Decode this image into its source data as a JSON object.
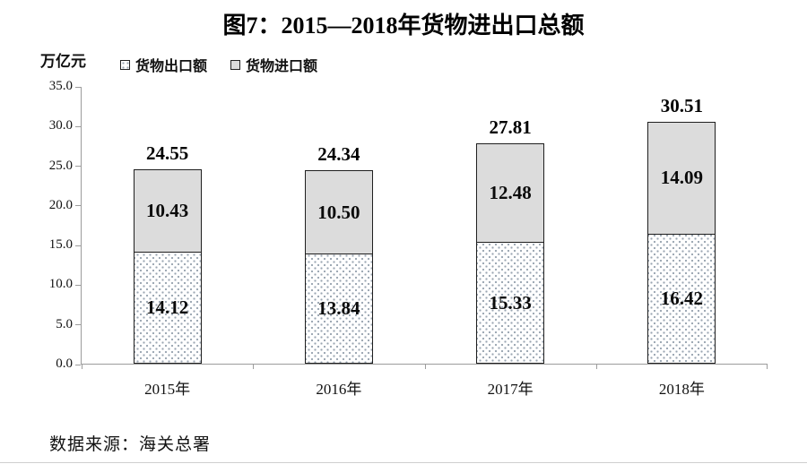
{
  "title": "图7：2015—2018年货物进出口总额",
  "unit_label": "万亿元",
  "legend": {
    "items": [
      {
        "label": "货物出口额",
        "swatch": "dotted-white"
      },
      {
        "label": "货物进口额",
        "swatch": "light-gray"
      }
    ]
  },
  "source": "数据来源：海关总署",
  "colors": {
    "import_fill": "#dcdcdc",
    "export_dot": "#9aa5b1",
    "bar_border": "#1f1f1f",
    "axis": "#9c9c9c"
  },
  "chart_data": {
    "type": "bar",
    "stacked": true,
    "title": "图7：2015—2018年货物进出口总额",
    "ylabel": "万亿元",
    "xlabel": "",
    "categories": [
      "2015年",
      "2016年",
      "2017年",
      "2018年"
    ],
    "series": [
      {
        "name": "货物出口额",
        "values": [
          14.12,
          13.84,
          15.33,
          16.42
        ]
      },
      {
        "name": "货物进口额",
        "values": [
          10.43,
          10.5,
          12.48,
          14.09
        ]
      }
    ],
    "totals": [
      24.55,
      24.34,
      27.81,
      30.51
    ],
    "ylim": [
      0,
      35
    ],
    "ytick_step": 5,
    "ytick_format_decimals": 1,
    "grid": false,
    "legend_position": "top-left"
  }
}
